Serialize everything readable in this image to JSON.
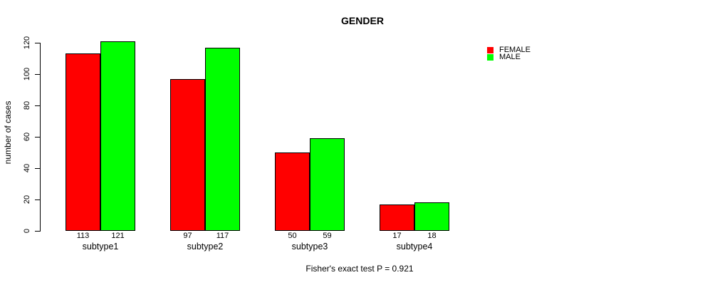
{
  "figure": {
    "background": "#FFFFFF",
    "text_color": "#000000",
    "axis_color": "#000000"
  },
  "chart_data": {
    "type": "bar",
    "title": "GENDER",
    "xlabel": "",
    "ylabel": "number of cases",
    "categories": [
      "subtype1",
      "subtype2",
      "subtype3",
      "subtype4"
    ],
    "series": [
      {
        "name": "FEMALE",
        "color": "#FF0000",
        "values": [
          113,
          97,
          50,
          17
        ]
      },
      {
        "name": "MALE",
        "color": "#00FF00",
        "values": [
          121,
          117,
          59,
          18
        ]
      }
    ],
    "ylim": [
      0,
      120
    ],
    "yticks": [
      0,
      20,
      40,
      60,
      80,
      100,
      120
    ],
    "show_value_labels": true,
    "grid": false,
    "bar_border_color": "#000000",
    "legend": {
      "position": "top-right",
      "entries": [
        "FEMALE",
        "MALE"
      ]
    },
    "annotation": "Fisher's exact test P = 0.921"
  }
}
